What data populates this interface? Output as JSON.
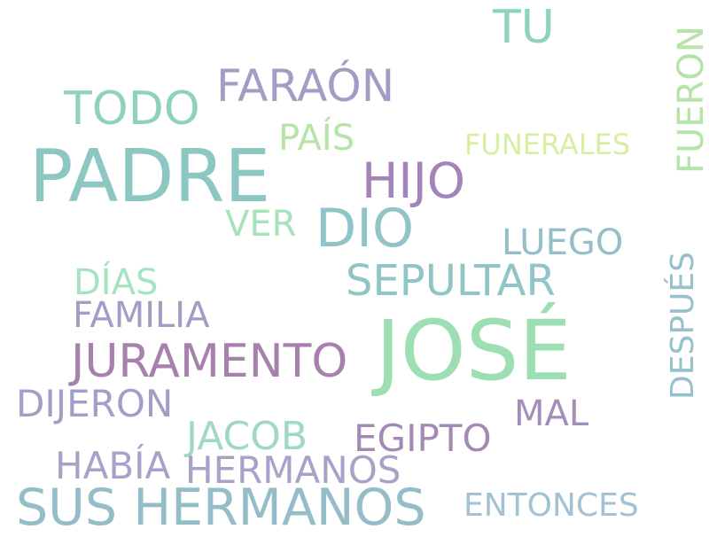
{
  "words": [
    {
      "text": "TU",
      "color": "#8fd1bf"
    },
    {
      "text": "FUERON",
      "color": "#b5e3a8"
    },
    {
      "text": "FARAÓN",
      "color": "#a69bc4"
    },
    {
      "text": "TODO",
      "color": "#8fd1bf"
    },
    {
      "text": "PAÍS",
      "color": "#b5e3a8"
    },
    {
      "text": "FUNERALES",
      "color": "#d6efa1"
    },
    {
      "text": "PADRE",
      "color": "#8dc7c1"
    },
    {
      "text": "HIJO",
      "color": "#a284b8"
    },
    {
      "text": "DIO",
      "color": "#90c5c7"
    },
    {
      "text": "VER",
      "color": "#a6e3b8"
    },
    {
      "text": "LUEGO",
      "color": "#94bfc8"
    },
    {
      "text": "SEPULTAR",
      "color": "#90c5c7"
    },
    {
      "text": "DÍAS",
      "color": "#a6e3c3"
    },
    {
      "text": "FAMILIA",
      "color": "#a69bc4"
    },
    {
      "text": "DESPUÉS",
      "color": "#96c1cb"
    },
    {
      "text": "JOSÉ",
      "color": "#9ddfb3"
    },
    {
      "text": "JURAMENTO",
      "color": "#a581ab"
    },
    {
      "text": "DIJERON",
      "color": "#a29fc7"
    },
    {
      "text": "MAL",
      "color": "#a38eba"
    },
    {
      "text": "JACOB",
      "color": "#9fd9c6"
    },
    {
      "text": "EGIPTO",
      "color": "#a589b5"
    },
    {
      "text": "HABÍA",
      "color": "#a5a3c8"
    },
    {
      "text": "HERMANOS",
      "color": "#a5a3c8"
    },
    {
      "text": "SUS HERMANOS",
      "color": "#95bdc8"
    },
    {
      "text": "ENTONCES",
      "color": "#a3c1d2"
    }
  ]
}
